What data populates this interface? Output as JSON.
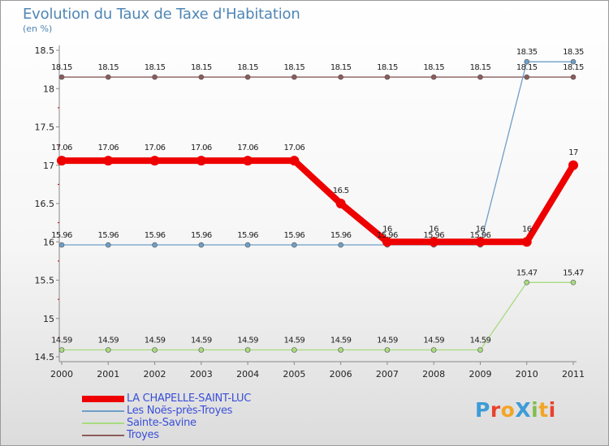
{
  "title": "Evolution du Taux de Taxe d'Habitation",
  "subtitle": "(en %)",
  "logo": "ProXiti",
  "colors": {
    "axis": "#888888",
    "grid_tick": "#cc0000",
    "logo": [
      "#3d9cd8",
      "#e8432d",
      "#f2a526",
      "#3d9cd8",
      "#7ec04b",
      "#f2a526",
      "#e8432d"
    ]
  },
  "chart_data": {
    "type": "line",
    "title": "Evolution du Taux de Taxe d'Habitation",
    "ylabel": "(en %)",
    "xlabel": "",
    "ylim": [
      14.5,
      18.5
    ],
    "yticks": [
      "14.5",
      "15",
      "15.5",
      "16",
      "16.5",
      "17",
      "17.5",
      "18",
      "18.5"
    ],
    "categories": [
      "2000",
      "2001",
      "2002",
      "2003",
      "2004",
      "2005",
      "2006",
      "2007",
      "2008",
      "2009",
      "2010",
      "2011"
    ],
    "series": [
      {
        "name": "LA CHAPELLE-SAINT-LUC",
        "color": "#ee0000",
        "values": [
          17.06,
          17.06,
          17.06,
          17.06,
          17.06,
          17.06,
          16.5,
          16,
          16,
          16,
          16,
          17
        ],
        "labels": [
          "17.06",
          "17.06",
          "17.06",
          "17.06",
          "17.06",
          "17.06",
          "16.5",
          "16",
          "16",
          "16",
          "16",
          "17"
        ]
      },
      {
        "name": "Les Noës-près-Troyes",
        "color": "#6e9fc9",
        "values": [
          15.96,
          15.96,
          15.96,
          15.96,
          15.96,
          15.96,
          15.96,
          15.96,
          15.96,
          15.96,
          18.35,
          18.35
        ],
        "labels": [
          "15.96",
          "15.96",
          "15.96",
          "15.96",
          "15.96",
          "15.96",
          "15.96",
          "15.96",
          "15.96",
          "15.96",
          "18.35",
          "18.35"
        ]
      },
      {
        "name": "Sainte-Savine",
        "color": "#a8db80",
        "values": [
          14.59,
          14.59,
          14.59,
          14.59,
          14.59,
          14.59,
          14.59,
          14.59,
          14.59,
          14.59,
          15.47,
          15.47
        ],
        "labels": [
          "14.59",
          "14.59",
          "14.59",
          "14.59",
          "14.59",
          "14.59",
          "14.59",
          "14.59",
          "14.59",
          "14.59",
          "15.47",
          "15.47"
        ]
      },
      {
        "name": "Troyes",
        "color": "#8b5c5c",
        "values": [
          18.15,
          18.15,
          18.15,
          18.15,
          18.15,
          18.15,
          18.15,
          18.15,
          18.15,
          18.15,
          18.15,
          18.15
        ],
        "labels": [
          "18.15",
          "18.15",
          "18.15",
          "18.15",
          "18.15",
          "18.15",
          "18.15",
          "18.15",
          "18.15",
          "18.15",
          "18.15",
          "18.15"
        ]
      }
    ]
  }
}
